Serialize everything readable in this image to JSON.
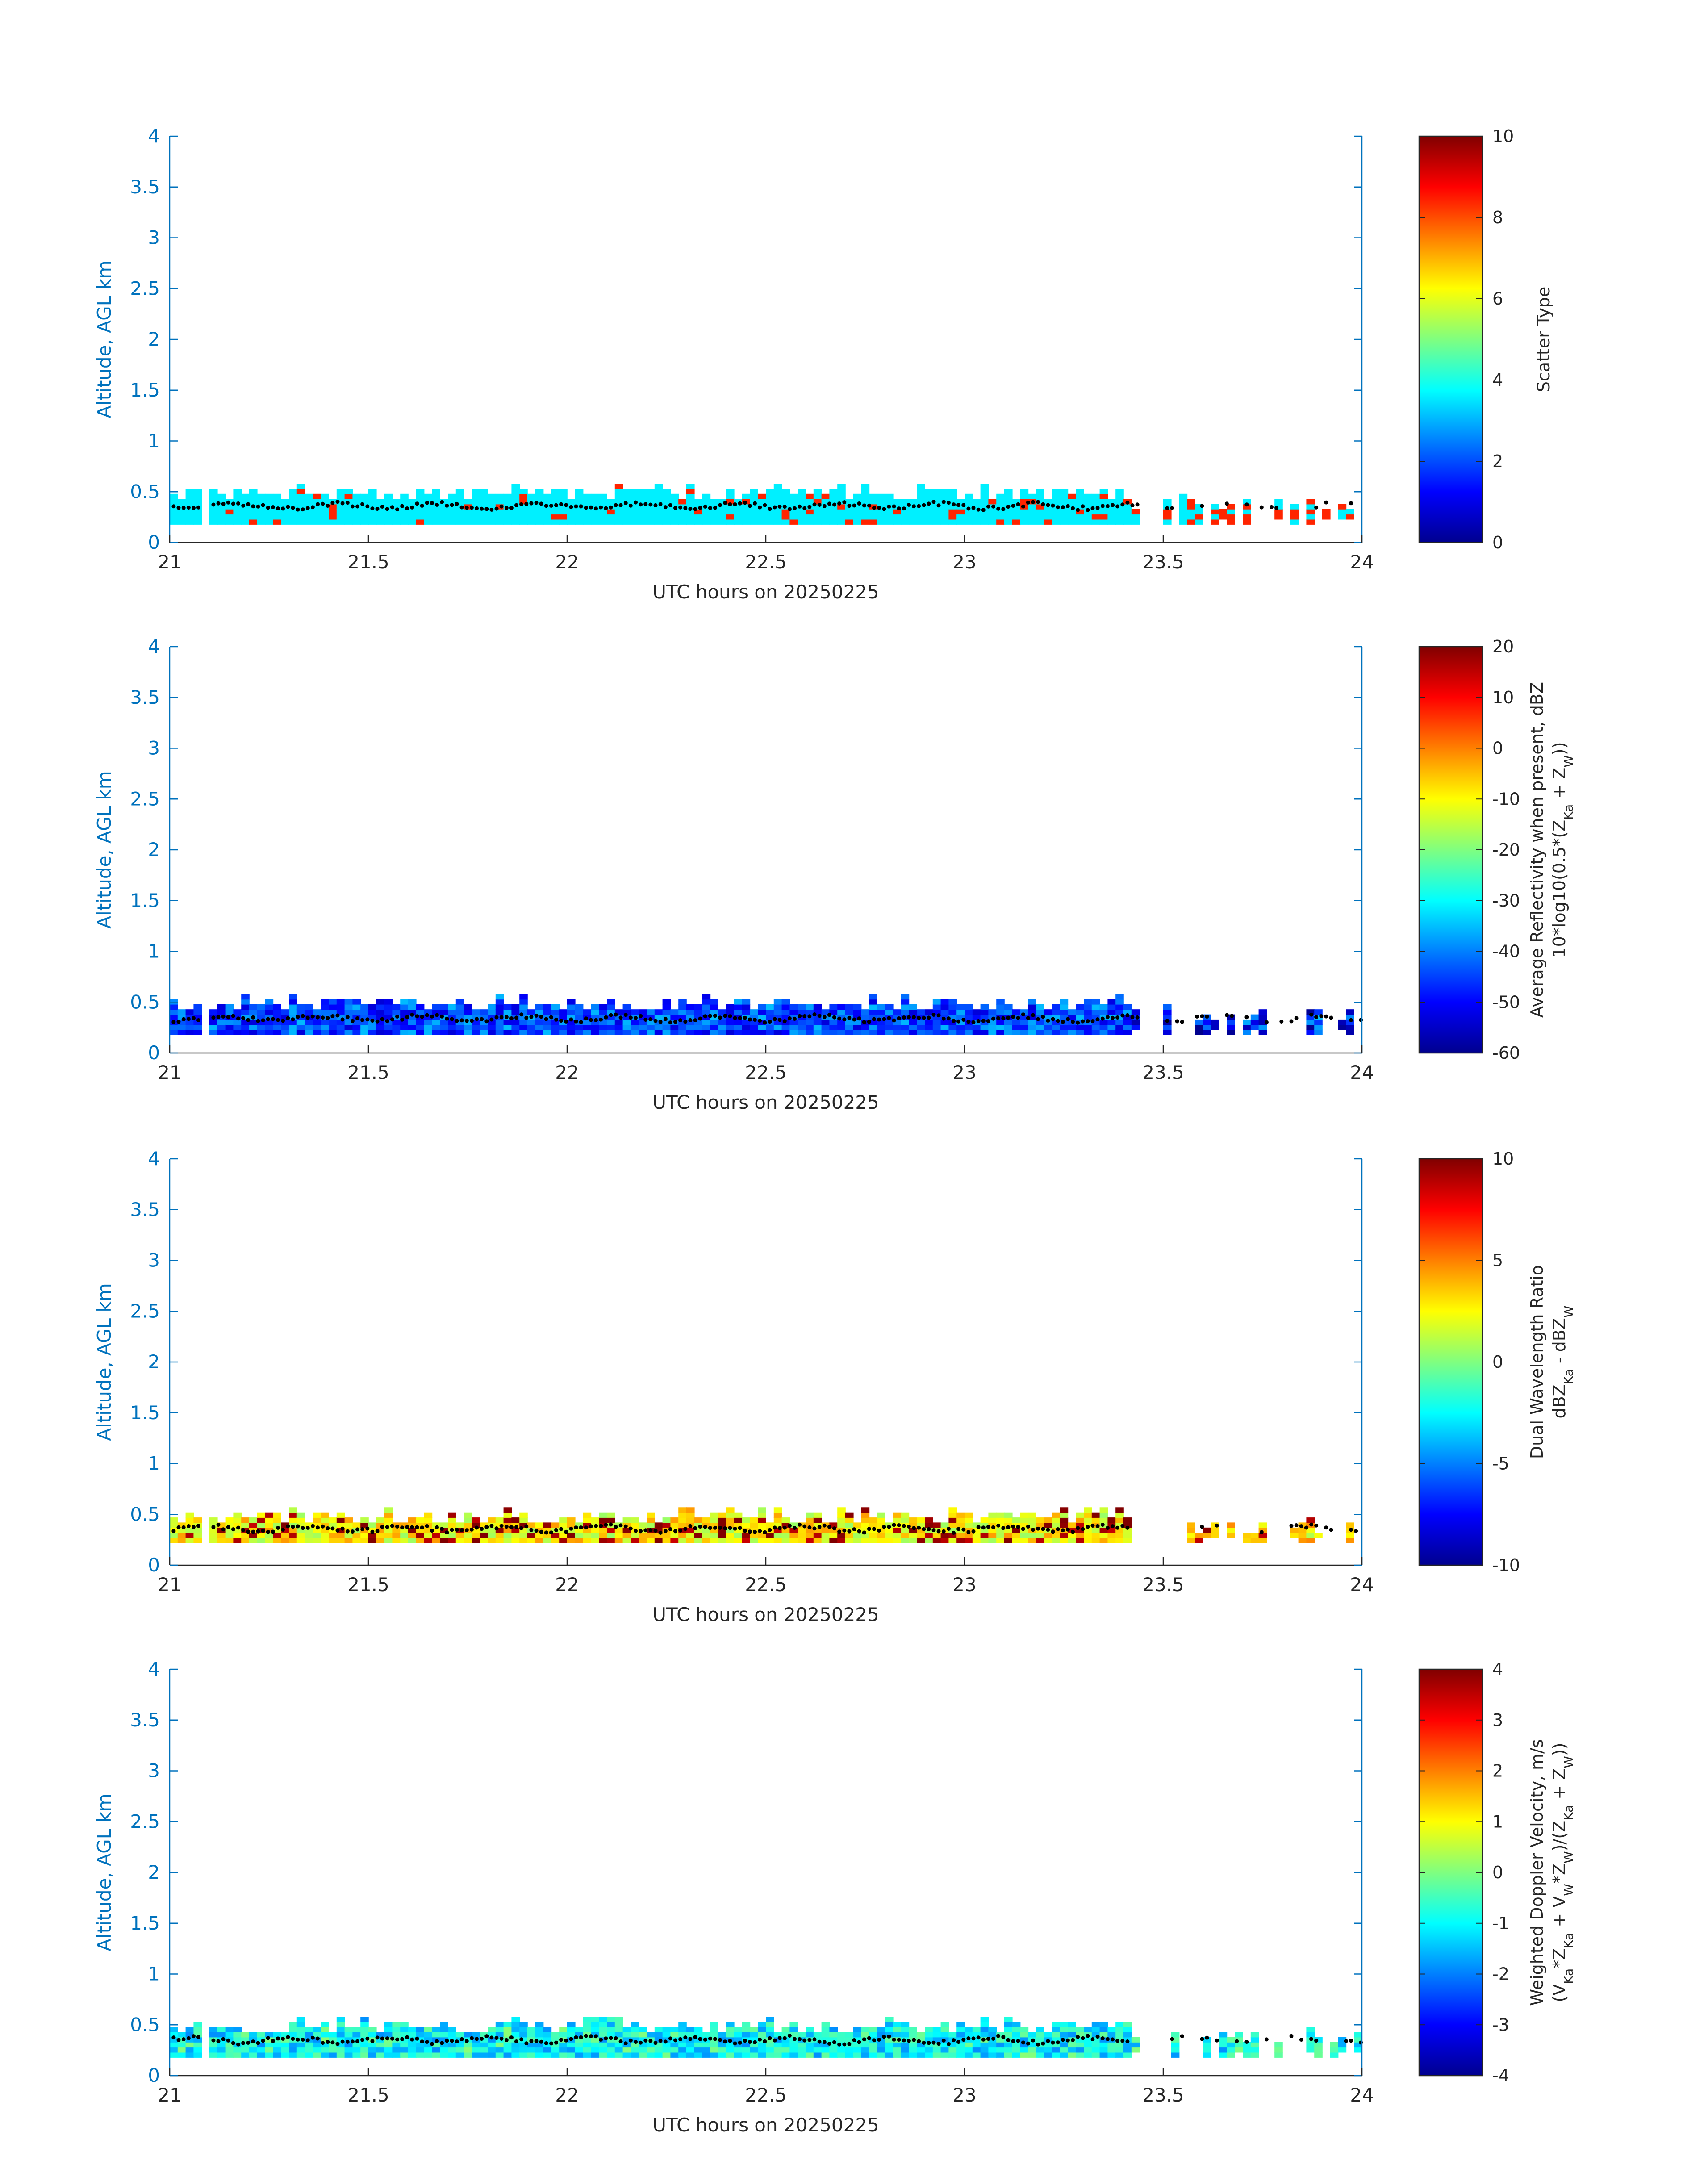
{
  "figure": {
    "panel_count": 4,
    "colors": {
      "axis": "#0072BD",
      "label_text": "#262626",
      "trace_marks": "#000000",
      "background": "#ffffff"
    },
    "colormap": "jet"
  },
  "chart_data": [
    {
      "type": "heatmap",
      "title": "",
      "xlabel": "UTC hours on 20250225",
      "ylabel": "Altitude, AGL km",
      "xlim": [
        21,
        24
      ],
      "ylim": [
        0,
        4
      ],
      "xticks": [
        "21",
        "21.5",
        "22",
        "22.5",
        "23",
        "23.5",
        "24"
      ],
      "yticks": [
        "0",
        "0.5",
        "1",
        "1.5",
        "2",
        "2.5",
        "3",
        "3.5",
        "4"
      ],
      "colorbar": {
        "label_lines": [
          "Scatter Type"
        ],
        "clim": [
          0,
          10
        ],
        "ticks": [
          "0",
          "2",
          "4",
          "6",
          "8",
          "10"
        ]
      },
      "layer_value": 3.6,
      "accent_value": 8.4,
      "sporadic_value": 8.4,
      "value_jitter": 0,
      "accent_fraction": 0.06,
      "gaps": [
        [
          21.08,
          21.1
        ],
        [
          23.45,
          23.5
        ],
        [
          23.8,
          23.82
        ]
      ],
      "sparse_from": 23.42,
      "layer_bottom_km": 0.18,
      "layer_top_km": 0.52,
      "trace": {
        "mean_km": 0.36,
        "amplitude_km": 0.04
      }
    },
    {
      "type": "heatmap",
      "title": "",
      "xlabel": "UTC hours on 20250225",
      "ylabel": "Altitude, AGL km",
      "xlim": [
        21,
        24
      ],
      "ylim": [
        0,
        4
      ],
      "xticks": [
        "21",
        "21.5",
        "22",
        "22.5",
        "23",
        "23.5",
        "24"
      ],
      "yticks": [
        "0",
        "0.5",
        "1",
        "1.5",
        "2",
        "2.5",
        "3",
        "3.5",
        "4"
      ],
      "colorbar": {
        "label_lines": [
          "Average Reflectivity when present, dBZ",
          "10*log10(0.5*(Z_Ka + Z_W))"
        ],
        "clim": [
          -60,
          20
        ],
        "ticks": [
          "-60",
          "-50",
          "-40",
          "-30",
          "-20",
          "-10",
          "0",
          "10",
          "20"
        ]
      },
      "layer_value": -47,
      "accent_value": -38,
      "sporadic_value": -56,
      "value_jitter": 6,
      "accent_fraction": 0.25,
      "gaps": [
        [
          21.08,
          21.1
        ],
        [
          23.45,
          23.5
        ],
        [
          23.8,
          23.82
        ]
      ],
      "sparse_from": 23.42,
      "layer_bottom_km": 0.18,
      "layer_top_km": 0.52,
      "trace": {
        "mean_km": 0.34,
        "amplitude_km": 0.04
      }
    },
    {
      "type": "heatmap",
      "title": "",
      "xlabel": "UTC hours on 20250225",
      "ylabel": "Altitude, AGL km",
      "xlim": [
        21,
        24
      ],
      "ylim": [
        0,
        4
      ],
      "xticks": [
        "21",
        "21.5",
        "22",
        "22.5",
        "23",
        "23.5",
        "24"
      ],
      "yticks": [
        "0",
        "0.5",
        "1",
        "1.5",
        "2",
        "2.5",
        "3",
        "3.5",
        "4"
      ],
      "colorbar": {
        "label_lines": [
          "Dual Wavelength Ratio",
          "dBZ_Ka - dBZ_W"
        ],
        "clim": [
          -10,
          10
        ],
        "ticks": [
          "-10",
          "-5",
          "0",
          "5",
          "10"
        ]
      },
      "layer_value": 2.5,
      "accent_value": 9.5,
      "sporadic_value": 4,
      "value_jitter": 2,
      "accent_fraction": 0.2,
      "gaps": [
        [
          21.08,
          21.1
        ],
        [
          23.42,
          23.55
        ],
        [
          23.75,
          23.82
        ]
      ],
      "sparse_from": 23.55,
      "layer_bottom_km": 0.22,
      "layer_top_km": 0.5,
      "trace": {
        "mean_km": 0.36,
        "amplitude_km": 0.04
      }
    },
    {
      "type": "heatmap",
      "title": "",
      "xlabel": "UTC hours on 20250225",
      "ylabel": "Altitude, AGL km",
      "xlim": [
        21,
        24
      ],
      "ylim": [
        0,
        4
      ],
      "xticks": [
        "21",
        "21.5",
        "22",
        "22.5",
        "23",
        "23.5",
        "24"
      ],
      "yticks": [
        "0",
        "0.5",
        "1",
        "1.5",
        "2",
        "2.5",
        "3",
        "3.5",
        "4"
      ],
      "colorbar": {
        "label_lines": [
          "Weighted Doppler Velocity, m/s",
          "(V_Ka*Z_Ka + V_W*Z_W)/(Z_Ka + Z_W))"
        ],
        "clim": [
          -4,
          4
        ],
        "ticks": [
          "-4",
          "-3",
          "-2",
          "-1",
          "0",
          "1",
          "2",
          "3",
          "4"
        ]
      },
      "layer_value": -1.1,
      "accent_value": -0.3,
      "sporadic_value": -0.5,
      "value_jitter": 0.8,
      "accent_fraction": 0.15,
      "gaps": [
        [
          21.08,
          21.1
        ],
        [
          23.45,
          23.5
        ],
        [
          23.8,
          23.82
        ]
      ],
      "sparse_from": 23.42,
      "layer_bottom_km": 0.18,
      "layer_top_km": 0.52,
      "trace": {
        "mean_km": 0.35,
        "amplitude_km": 0.04
      }
    }
  ]
}
